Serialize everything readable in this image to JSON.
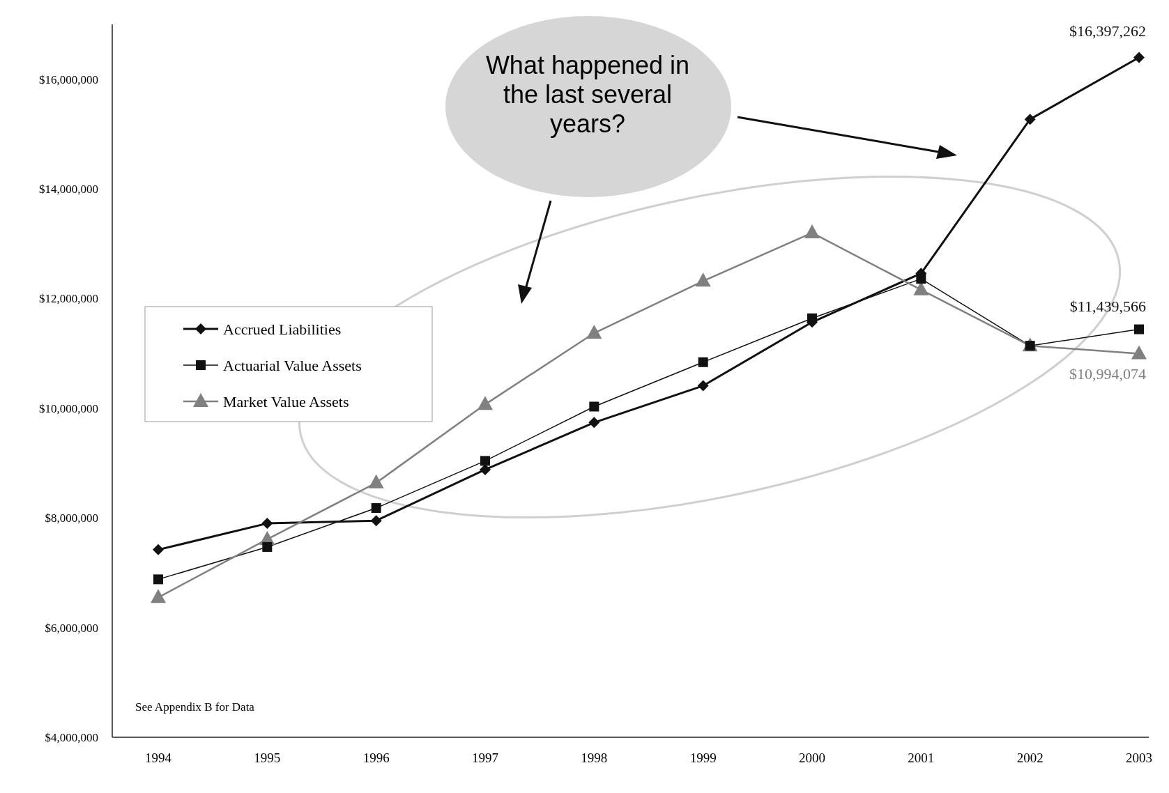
{
  "chart_data": {
    "type": "line",
    "categories": [
      "1994",
      "1995",
      "1996",
      "1997",
      "1998",
      "1999",
      "2000",
      "2001",
      "2002",
      "2003"
    ],
    "series": [
      {
        "name": "Accrued Liabilities",
        "color": "#111111",
        "marker": "diamond",
        "values": [
          7420000,
          7900000,
          7950000,
          8880000,
          9740000,
          10410000,
          11570000,
          12460000,
          15270000,
          16397262
        ],
        "value_labels": [
          null,
          null,
          null,
          null,
          null,
          null,
          null,
          null,
          null,
          "$16,397,262"
        ]
      },
      {
        "name": "Actuarial Value Assets",
        "color": "#111111",
        "marker": "square",
        "values": [
          6880000,
          7470000,
          8180000,
          9040000,
          10030000,
          10840000,
          11640000,
          12360000,
          11140000,
          11439566
        ],
        "value_labels": [
          null,
          null,
          null,
          null,
          null,
          null,
          null,
          null,
          null,
          "$11,439,566"
        ]
      },
      {
        "name": "Market Value Assets",
        "color": "#808080",
        "marker": "triangle",
        "values": [
          6550000,
          7610000,
          8640000,
          10070000,
          11370000,
          12320000,
          13200000,
          12160000,
          11140000,
          10994074
        ],
        "value_labels": [
          null,
          null,
          null,
          null,
          null,
          null,
          null,
          null,
          null,
          "$10,994,074"
        ]
      }
    ],
    "ylim": [
      4000000,
      17000000
    ],
    "yticks": [
      {
        "value": 4000000,
        "label": "$4,000,000"
      },
      {
        "value": 6000000,
        "label": "$6,000,000"
      },
      {
        "value": 8000000,
        "label": "$8,000,000"
      },
      {
        "value": 10000000,
        "label": "$10,000,000"
      },
      {
        "value": 12000000,
        "label": "$12,000,000"
      },
      {
        "value": 14000000,
        "label": "$14,000,000"
      },
      {
        "value": 16000000,
        "label": "$16,000,000"
      }
    ],
    "grid": false,
    "legend": "left",
    "annotations": [
      "What happened in the last several years?",
      "See Appendix B for Data"
    ]
  }
}
